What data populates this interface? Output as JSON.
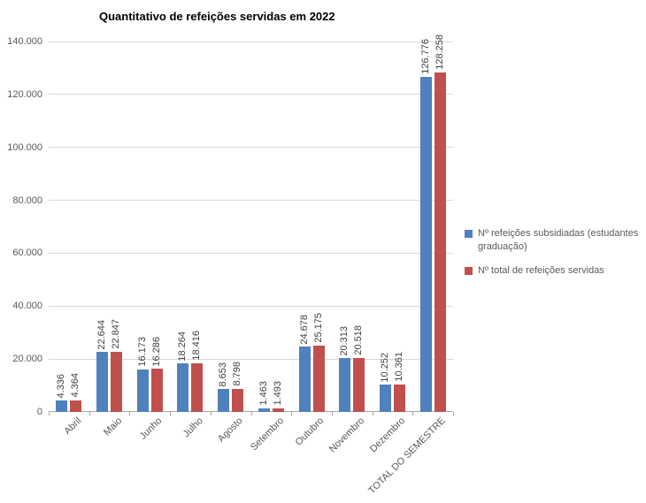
{
  "chart_data": {
    "type": "bar",
    "title": "Quantitativo de refeições servidas em 2022",
    "categories": [
      "Abril",
      "Maio",
      "Junho",
      "Julho",
      "Agosto",
      "Setembro",
      "Outubro",
      "Novembro",
      "Dezembro",
      "TOTAL DO SEMESTRE"
    ],
    "series": [
      {
        "name": "Nº refeições subsidiadas (estudantes graduação)",
        "color": "#4F81BD",
        "values": [
          4336,
          22644,
          16173,
          18264,
          8653,
          1463,
          24678,
          20313,
          10252,
          126776
        ]
      },
      {
        "name": "Nº total de refeições servidas",
        "color": "#C0504D",
        "values": [
          4364,
          22847,
          16286,
          18416,
          8798,
          1493,
          25175,
          20518,
          10361,
          128258
        ]
      }
    ],
    "ylim": [
      0,
      140000
    ],
    "ytick_step": 20000,
    "ytick_labels": [
      "0",
      "20.000",
      "40.000",
      "60.000",
      "80.000",
      "100.000",
      "120.000",
      "140.000"
    ],
    "grid": true,
    "legend_position": "right",
    "data_labels": true,
    "data_label_rotation": -90,
    "category_label_rotation": -45,
    "number_format": "thousands-dot"
  },
  "colors": {
    "background": "#ffffff",
    "gridline": "#d9d9d9",
    "axis_line": "#a6a6a6",
    "axis_text": "#595959",
    "data_label_text": "#3f3f3f",
    "title_text": "#000000",
    "series_blue": "#4F81BD",
    "series_red": "#C0504D"
  }
}
